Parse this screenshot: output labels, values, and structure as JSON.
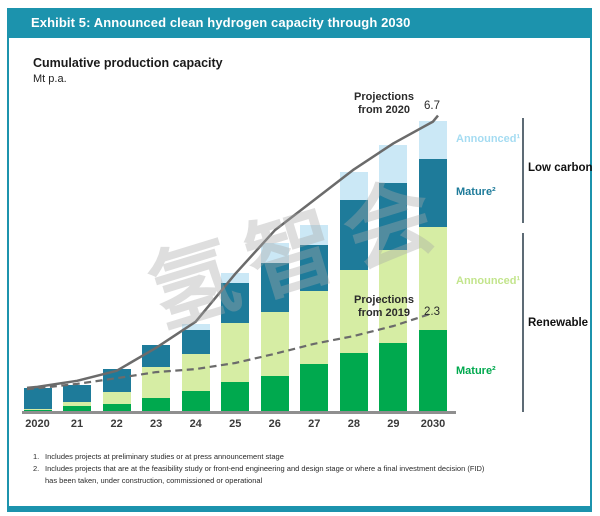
{
  "exhibit": {
    "title": "Exhibit 5: Announced clean hydrogen capacity through 2030"
  },
  "chart_header": {
    "title": "Cumulative production capacity",
    "unit": "Mt p.a."
  },
  "annotations": {
    "proj2020_line1": "Projections",
    "proj2020_line2": "from 2020",
    "proj2020_value": "6.7",
    "proj2019_line1": "Projections",
    "proj2019_line2": "from 2019",
    "proj2019_value": "2.3"
  },
  "legend": {
    "low_carbon": {
      "announced": "Announced¹",
      "mature": "Mature²",
      "group": "Low carbon"
    },
    "renewable": {
      "announced": "Announced¹",
      "mature": "Mature²",
      "group": "Renewable"
    }
  },
  "footnotes": [
    {
      "num": "1.",
      "text": "Includes projects at preliminary studies or at press announcement stage"
    },
    {
      "num": "2.",
      "text": "Includes projects that are at the feasibility study or front-end engineering and design stage or where a final investment decision (FID)\nhas been taken, under construction, commissioned or operational"
    }
  ],
  "watermark": "氢智会",
  "colors": {
    "header_teal": "#1c93ad",
    "low_carbon_announced": "#cbe8f6",
    "low_carbon_mature": "#1e7b9a",
    "renewable_announced": "#d6eda4",
    "renewable_mature": "#00a94e",
    "projection_line_gray": "#6b6b6b",
    "axis_gray": "#8f8f8f"
  },
  "chart_data": {
    "type": "bar",
    "stacked": true,
    "title": "Cumulative production capacity",
    "ylabel": "Mt p.a.",
    "xlabel": "",
    "ylim": [
      0,
      7
    ],
    "grid": false,
    "categories": [
      "2020",
      "21",
      "22",
      "23",
      "24",
      "25",
      "26",
      "27",
      "28",
      "29",
      "2030"
    ],
    "series": [
      {
        "name": "Renewable Mature",
        "key": "renewable-mature",
        "color": "#00a94e",
        "values": [
          0.07,
          0.16,
          0.21,
          0.34,
          0.51,
          0.71,
          0.85,
          1.13,
          1.38,
          1.61,
          1.91
        ]
      },
      {
        "name": "Renewable Announced",
        "key": "renewable-announced",
        "color": "#d6eda4",
        "values": [
          0.02,
          0.09,
          0.28,
          0.71,
          0.85,
          1.36,
          1.47,
          1.68,
          1.91,
          2.14,
          2.37
        ]
      },
      {
        "name": "Low carbon Mature",
        "key": "low-carbon-mature",
        "color": "#1e7b9a",
        "values": [
          0.48,
          0.39,
          0.53,
          0.51,
          0.55,
          0.92,
          1.13,
          1.06,
          1.61,
          1.54,
          1.56
        ]
      },
      {
        "name": "Low carbon Announced",
        "key": "low-carbon-announced",
        "color": "#cbe8f6",
        "values": [
          0,
          0,
          0,
          0,
          0.14,
          0.23,
          0.46,
          0.46,
          0.64,
          0.87,
          0.87
        ]
      }
    ],
    "totals": [
      0.57,
      0.64,
      1.02,
      1.56,
      2.05,
      3.22,
      3.91,
      4.33,
      5.54,
      6.16,
      6.71
    ],
    "lines": [
      {
        "name": "Projections from 2020",
        "style": "solid",
        "end_label": "6.7",
        "values": [
          0.6,
          0.74,
          0.97,
          1.5,
          2.1,
          3.2,
          4.2,
          4.9,
          5.6,
          6.2,
          6.7
        ]
      },
      {
        "name": "Projections from 2019",
        "style": "dashed",
        "end_label": "2.3",
        "values": [
          0.57,
          0.67,
          0.8,
          0.94,
          1.01,
          1.15,
          1.36,
          1.59,
          1.77,
          2.0,
          2.3
        ]
      }
    ],
    "legend_position": "right"
  }
}
